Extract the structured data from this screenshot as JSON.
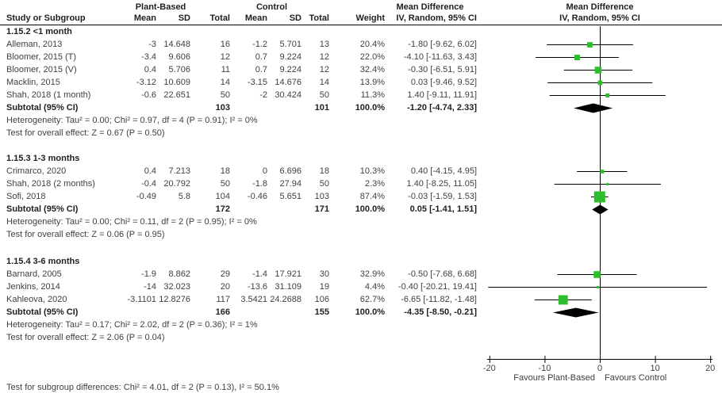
{
  "header": {
    "study_col": "Study or Subgroup",
    "group1": "Plant-Based",
    "group2": "Control",
    "col_mean": "Mean",
    "col_sd": "SD",
    "col_total": "Total",
    "col_weight": "Weight",
    "effect_title": "Mean Difference",
    "effect_subtitle": "IV, Random, 95% CI",
    "plot_title": "Mean Difference",
    "plot_subtitle": "IV, Random, 95% CI"
  },
  "chart_data": {
    "type": "forest",
    "effect_measure": "Mean Difference, IV Random 95% CI",
    "axis": {
      "min": -20,
      "max": 20,
      "ticks": [
        -20,
        -10,
        0,
        10,
        20
      ],
      "label_left": "Favours Plant-Based",
      "label_right": "Favours Control"
    },
    "colors": {
      "marker": "#2dbe2d",
      "diamond": "#000000",
      "line": "#000000",
      "text": "#404040"
    },
    "subgroups": [
      {
        "label": "1.15.2 <1 month",
        "studies": [
          {
            "name": "Alleman, 2013",
            "mean1": "-3",
            "sd1": "14.648",
            "total1": "16",
            "mean2": "-1.2",
            "sd2": "5.701",
            "total2": "13",
            "weight": "20.4%",
            "weight_pct": 20.4,
            "effect_label": "-1.80 [-9.62, 6.02]",
            "effect": -1.8,
            "ci_low": -9.62,
            "ci_high": 6.02
          },
          {
            "name": "Bloomer, 2015 (T)",
            "mean1": "-3.4",
            "sd1": "9.606",
            "total1": "12",
            "mean2": "0.7",
            "sd2": "9.224",
            "total2": "12",
            "weight": "22.0%",
            "weight_pct": 22.0,
            "effect_label": "-4.10 [-11.63, 3.43]",
            "effect": -4.1,
            "ci_low": -11.63,
            "ci_high": 3.43
          },
          {
            "name": "Bloomer, 2015 (V)",
            "mean1": "0.4",
            "sd1": "5.706",
            "total1": "11",
            "mean2": "0.7",
            "sd2": "9.224",
            "total2": "12",
            "weight": "32.4%",
            "weight_pct": 32.4,
            "effect_label": "-0.30 [-6.51, 5.91]",
            "effect": -0.3,
            "ci_low": -6.51,
            "ci_high": 5.91
          },
          {
            "name": "Macklin, 2015",
            "mean1": "-3.12",
            "sd1": "10.609",
            "total1": "14",
            "mean2": "-3.15",
            "sd2": "14.676",
            "total2": "14",
            "weight": "13.9%",
            "weight_pct": 13.9,
            "effect_label": "0.03 [-9.46, 9.52]",
            "effect": 0.03,
            "ci_low": -9.46,
            "ci_high": 9.52
          },
          {
            "name": "Shah, 2018 (1 month)",
            "mean1": "-0.6",
            "sd1": "22.651",
            "total1": "50",
            "mean2": "-2",
            "sd2": "30.424",
            "total2": "50",
            "weight": "11.3%",
            "weight_pct": 11.3,
            "effect_label": "1.40 [-9.11, 11.91]",
            "effect": 1.4,
            "ci_low": -9.11,
            "ci_high": 11.91
          }
        ],
        "subtotal": {
          "name": "Subtotal (95% CI)",
          "total1": "103",
          "total2": "101",
          "weight": "100.0%",
          "effect_label": "-1.20 [-4.74, 2.33]",
          "effect": -1.2,
          "ci_low": -4.74,
          "ci_high": 2.33
        },
        "heterogeneity": "Heterogeneity: Tau² = 0.00; Chi² = 0.97, df = 4 (P = 0.91); I² = 0%",
        "overall_effect": "Test for overall effect: Z = 0.67 (P = 0.50)"
      },
      {
        "label": "1.15.3 1-3 months",
        "studies": [
          {
            "name": "Crimarco, 2020",
            "mean1": "0.4",
            "sd1": "7.213",
            "total1": "18",
            "mean2": "0",
            "sd2": "6.696",
            "total2": "18",
            "weight": "10.3%",
            "weight_pct": 10.3,
            "effect_label": "0.40 [-4.15, 4.95]",
            "effect": 0.4,
            "ci_low": -4.15,
            "ci_high": 4.95
          },
          {
            "name": "Shah, 2018 (2 months)",
            "mean1": "-0.4",
            "sd1": "20.792",
            "total1": "50",
            "mean2": "-1.8",
            "sd2": "27.94",
            "total2": "50",
            "weight": "2.3%",
            "weight_pct": 2.3,
            "effect_label": "1.40 [-8.25, 11.05]",
            "effect": 1.4,
            "ci_low": -8.25,
            "ci_high": 11.05
          },
          {
            "name": "Sofi, 2018",
            "mean1": "-0.49",
            "sd1": "5.8",
            "total1": "104",
            "mean2": "-0.46",
            "sd2": "5.651",
            "total2": "103",
            "weight": "87.4%",
            "weight_pct": 87.4,
            "effect_label": "-0.03 [-1.59, 1.53]",
            "effect": -0.03,
            "ci_low": -1.59,
            "ci_high": 1.53
          }
        ],
        "subtotal": {
          "name": "Subtotal (95% CI)",
          "total1": "172",
          "total2": "171",
          "weight": "100.0%",
          "effect_label": "0.05 [-1.41, 1.51]",
          "effect": 0.05,
          "ci_low": -1.41,
          "ci_high": 1.51
        },
        "heterogeneity": "Heterogeneity: Tau² = 0.00; Chi² = 0.11, df = 2 (P = 0.95); I² = 0%",
        "overall_effect": "Test for overall effect: Z = 0.06 (P = 0.95)"
      },
      {
        "label": "1.15.4 3-6 months",
        "studies": [
          {
            "name": "Barnard, 2005",
            "mean1": "-1.9",
            "sd1": "8.862",
            "total1": "29",
            "mean2": "-1.4",
            "sd2": "17.921",
            "total2": "30",
            "weight": "32.9%",
            "weight_pct": 32.9,
            "effect_label": "-0.50 [-7.68, 6.68]",
            "effect": -0.5,
            "ci_low": -7.68,
            "ci_high": 6.68
          },
          {
            "name": "Jenkins, 2014",
            "mean1": "-14",
            "sd1": "32.023",
            "total1": "20",
            "mean2": "-13.6",
            "sd2": "31.109",
            "total2": "19",
            "weight": "4.4%",
            "weight_pct": 4.4,
            "effect_label": "-0.40 [-20.21, 19.41]",
            "effect": -0.4,
            "ci_low": -20.21,
            "ci_high": 19.41
          },
          {
            "name": "Kahleova, 2020",
            "mean1": "-3.1101",
            "sd1": "12.8276",
            "total1": "117",
            "mean2": "3.5421",
            "sd2": "24.2688",
            "total2": "106",
            "weight": "62.7%",
            "weight_pct": 62.7,
            "effect_label": "-6.65 [-11.82, -1.48]",
            "effect": -6.65,
            "ci_low": -11.82,
            "ci_high": -1.48
          }
        ],
        "subtotal": {
          "name": "Subtotal (95% CI)",
          "total1": "166",
          "total2": "155",
          "weight": "100.0%",
          "effect_label": "-4.35 [-8.50, -0.21]",
          "effect": -4.35,
          "ci_low": -8.5,
          "ci_high": -0.21
        },
        "heterogeneity": "Heterogeneity: Tau² = 0.17; Chi² = 2.02, df = 2 (P = 0.36); I² = 1%",
        "overall_effect": "Test for overall effect: Z = 2.06 (P = 0.04)"
      }
    ],
    "footer": "Test for subgroup differences: Chi² = 4.01, df = 2 (P = 0.13), I² = 50.1%"
  }
}
